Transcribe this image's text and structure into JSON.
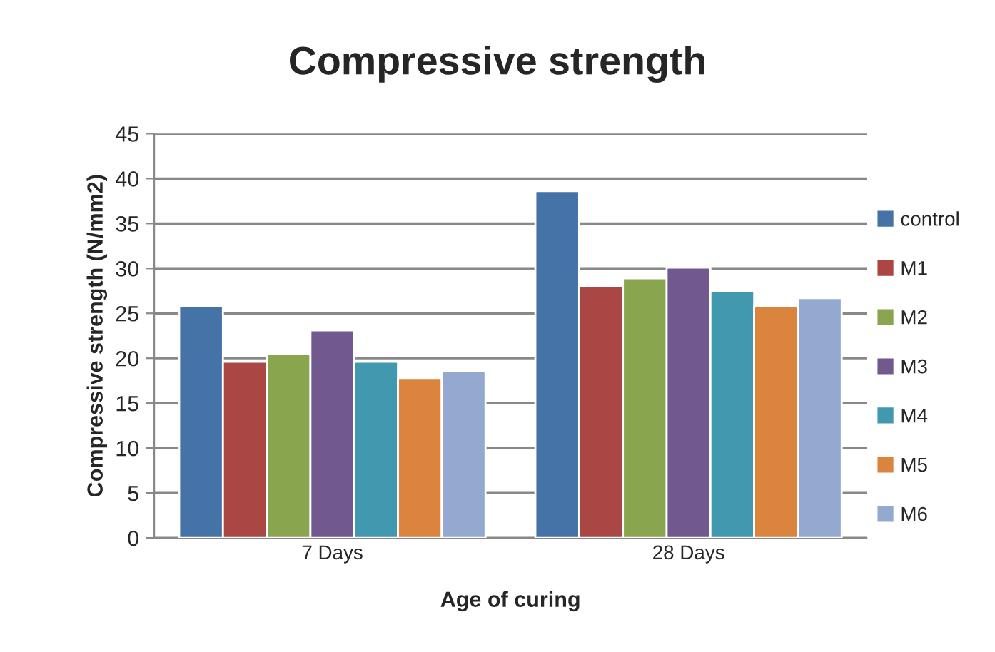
{
  "chart_data": {
    "type": "bar",
    "title": "Compressive strength",
    "xlabel": "Age of curing",
    "ylabel": "Compressive strength (N/mm2)",
    "categories": [
      "7 Days",
      "28 Days"
    ],
    "series": [
      {
        "name": "control",
        "color": "#4572a7",
        "values": [
          25.8,
          38.6
        ]
      },
      {
        "name": "M1",
        "color": "#aa4643",
        "values": [
          19.6,
          28.0
        ]
      },
      {
        "name": "M2",
        "color": "#89a54e",
        "values": [
          20.5,
          28.9
        ]
      },
      {
        "name": "M3",
        "color": "#71588f",
        "values": [
          23.1,
          30.1
        ]
      },
      {
        "name": "M4",
        "color": "#4198af",
        "values": [
          19.6,
          27.5
        ]
      },
      {
        "name": "M5",
        "color": "#db843d",
        "values": [
          17.8,
          25.8
        ]
      },
      {
        "name": "M6",
        "color": "#93a9cf",
        "values": [
          18.6,
          26.7
        ]
      }
    ],
    "ylim": [
      0,
      45
    ],
    "yticks": [
      0,
      5,
      10,
      15,
      20,
      25,
      30,
      35,
      40,
      45
    ],
    "grid": "y",
    "legend": "right"
  }
}
